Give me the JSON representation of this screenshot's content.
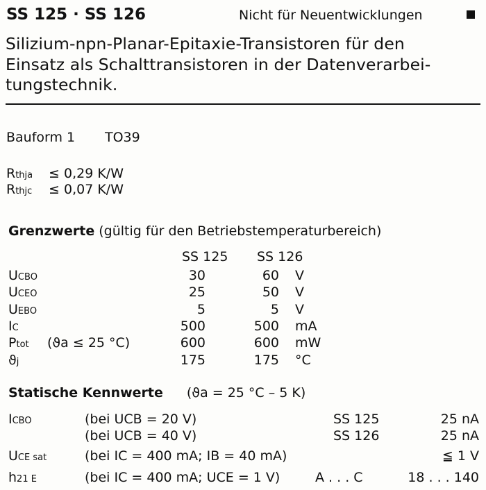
{
  "header": {
    "title": "SS 125 · SS 126",
    "note": "Nicht für Neuentwicklungen"
  },
  "description": [
    "Silizium-npn-Planar-Epitaxie-Transistoren   für   den",
    "Einsatz als Schalttransistoren in der Datenverarbei-",
    "tungstechnik."
  ],
  "package": {
    "label": "Bauform 1",
    "value": "TO39"
  },
  "thermal": [
    {
      "sym": "R",
      "sub": "thja",
      "rel": "≤",
      "val": "0,29 K/W"
    },
    {
      "sym": "R",
      "sub": "thjc",
      "rel": "≤",
      "val": "0,07 K/W"
    }
  ],
  "limits": {
    "title": "Grenzwerte",
    "subtitle": "(gültig für den Betriebstemperaturbereich)",
    "cols": [
      "SS 125",
      "SS 126"
    ],
    "rows": [
      {
        "sym": "U",
        "sub": "CBO",
        "cond": "",
        "v1": "30",
        "v2": "60",
        "unit": "V"
      },
      {
        "sym": "U",
        "sub": "CEO",
        "cond": "",
        "v1": "25",
        "v2": "50",
        "unit": "V"
      },
      {
        "sym": "U",
        "sub": "EBO",
        "cond": "",
        "v1": "5",
        "v2": "5",
        "unit": "V"
      },
      {
        "sym": "I",
        "sub": "C",
        "cond": "",
        "v1": "500",
        "v2": "500",
        "unit": "mA"
      },
      {
        "sym": "P",
        "sub": "tot",
        "cond": "(ϑa ≤ 25 °C)",
        "v1": "600",
        "v2": "600",
        "unit": "mW"
      },
      {
        "sym": "ϑ",
        "sub": "j",
        "cond": "",
        "v1": "175",
        "v2": "175",
        "unit": "°C"
      }
    ]
  },
  "static": {
    "title": "Statische Kennwerte",
    "subtitle": "(ϑa = 25 °C – 5 K)",
    "rows": [
      {
        "sym": "I",
        "sub": "CBO",
        "cond": "(bei UCB = 20 V)",
        "type": "SS 125",
        "val": "25 nA"
      },
      {
        "sym": "",
        "sub": "",
        "cond": "(bei UCB = 40 V)",
        "type": "SS 126",
        "val": "25 nA"
      },
      {
        "sym": "U",
        "sub": "CE sat",
        "cond": "(bei IC = 400 mA; IB = 40 mA)",
        "type": "",
        "val": "≦  1 V"
      },
      {
        "sym": "h",
        "sub": "21 E",
        "cond": "(bei IC = 400 mA; UCE = 1 V)",
        "type": "A . . . C",
        "val": "18 . . . 140"
      }
    ]
  }
}
